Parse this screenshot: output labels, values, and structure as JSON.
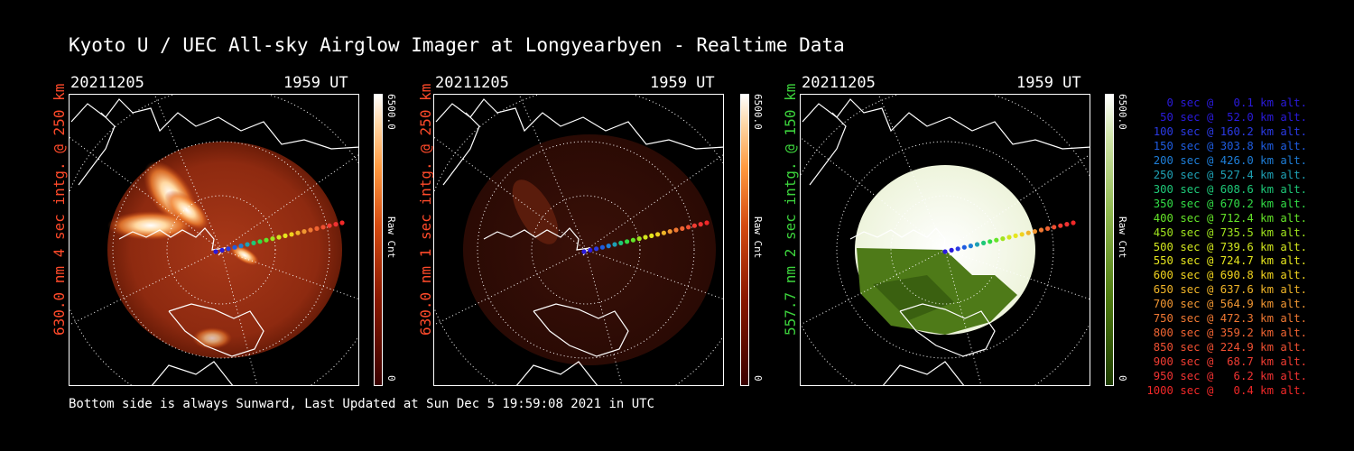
{
  "title": "Kyoto U / UEC All-sky Airglow Imager at Longyearbyen - Realtime Data",
  "panels": [
    {
      "date": "20211205",
      "time": "1959 UT",
      "label": "630.0 nm 4 sec intg. @ 250 km",
      "label_color": "#ff4a2a",
      "colorbar_max": "6500.0",
      "colorbar_min": "0",
      "colorbar_unit": "Raw Cnt"
    },
    {
      "date": "20211205",
      "time": "1959 UT",
      "label": "630.0 nm 1 sec intg. @ 250 km",
      "label_color": "#ff4a2a",
      "colorbar_max": "6500.0",
      "colorbar_min": "0",
      "colorbar_unit": "Raw Cnt"
    },
    {
      "date": "20211205",
      "time": "1959 UT",
      "label": "557.7 nm 2 sec intg. @ 150 km",
      "label_color": "#3cd23c",
      "colorbar_max": "6500.0",
      "colorbar_min": "0",
      "colorbar_unit": "Raw Cnt"
    }
  ],
  "footer": "Bottom side is always Sunward, Last Updated at Sun Dec  5 19:59:08 2021 in UTC",
  "legend": [
    {
      "text": "0 sec @   0.1 km alt.",
      "color": "#2a1adc"
    },
    {
      "text": "50 sec @  52.0 km alt.",
      "color": "#2a1adc"
    },
    {
      "text": "100 sec @ 160.2 km alt.",
      "color": "#2a3ae4"
    },
    {
      "text": "150 sec @ 303.8 km alt.",
      "color": "#1e5ce0"
    },
    {
      "text": "200 sec @ 426.0 km alt.",
      "color": "#1e7ed8"
    },
    {
      "text": "250 sec @ 527.4 km alt.",
      "color": "#1ea0b4"
    },
    {
      "text": "300 sec @ 608.6 km alt.",
      "color": "#1ec878"
    },
    {
      "text": "350 sec @ 670.2 km alt.",
      "color": "#32dc46"
    },
    {
      "text": "400 sec @ 712.4 km alt.",
      "color": "#64e428"
    },
    {
      "text": "450 sec @ 735.5 km alt.",
      "color": "#a0e41e"
    },
    {
      "text": "500 sec @ 739.6 km alt.",
      "color": "#d2e61e"
    },
    {
      "text": "550 sec @ 724.7 km alt.",
      "color": "#e6e61e"
    },
    {
      "text": "600 sec @ 690.8 km alt.",
      "color": "#f0d21e"
    },
    {
      "text": "650 sec @ 637.6 km alt.",
      "color": "#f0b428"
    },
    {
      "text": "700 sec @ 564.9 km alt.",
      "color": "#f09632"
    },
    {
      "text": "750 sec @ 472.3 km alt.",
      "color": "#f07832"
    },
    {
      "text": "800 sec @ 359.2 km alt.",
      "color": "#f06432"
    },
    {
      "text": "850 sec @ 224.9 km alt.",
      "color": "#f05032"
    },
    {
      "text": "900 sec @  68.7 km alt.",
      "color": "#f03c32"
    },
    {
      "text": "950 sec @   6.2 km alt.",
      "color": "#f03232"
    },
    {
      "text": "1000 sec @   0.4 km alt.",
      "color": "#f02828"
    }
  ]
}
